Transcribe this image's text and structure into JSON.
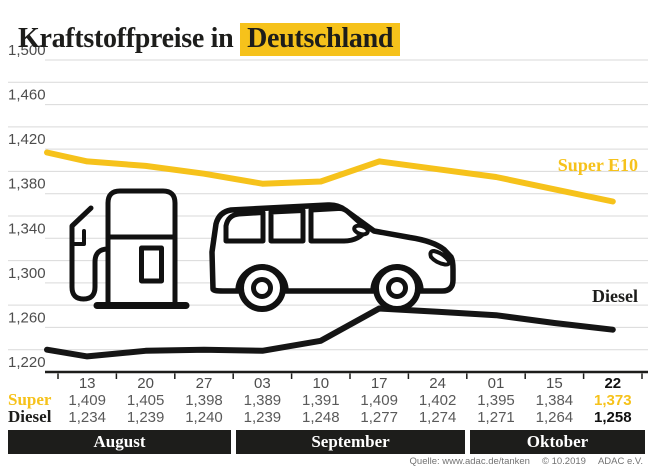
{
  "title": {
    "prefix": "Kraftstoffpreise in ",
    "highlight": "Deutschland"
  },
  "colors": {
    "accent_yellow": "#F6C21B",
    "line_black": "#151515",
    "band_bg": "#1D1D1B",
    "grid": "#D9D9D9",
    "axis_text": "#4D4D4D",
    "value_text": "#5A5A5A"
  },
  "footer": {
    "source": "Quelle: www.adac.de/tanken",
    "date": "© 10.2019",
    "org": "ADAC e.V."
  },
  "chart_data": {
    "type": "line",
    "title": "Kraftstoffpreise in Deutschland",
    "grid": "horizontal",
    "y_min": 1.22,
    "y_max": 1.5,
    "grid_step": 0.02,
    "y_tick_labels": [
      "1,500",
      "1,460",
      "1,420",
      "1,380",
      "1,340",
      "1,300",
      "1,260",
      "1,220"
    ],
    "x_tick_labels": [
      "13",
      "20",
      "27",
      "03",
      "10",
      "17",
      "24",
      "01",
      "15",
      "22"
    ],
    "x_month_groups": [
      {
        "label": "August",
        "dates": [
          "13",
          "20",
          "27"
        ]
      },
      {
        "label": "September",
        "dates": [
          "03",
          "10",
          "17",
          "24"
        ]
      },
      {
        "label": "Oktober",
        "dates": [
          "01",
          "15",
          "22"
        ]
      }
    ],
    "legend_position": "inline-right",
    "series": [
      {
        "name": "Super E10",
        "row_label": "Super",
        "color": "#F6C21B",
        "values": [
          1.409,
          1.405,
          1.398,
          1.389,
          1.391,
          1.409,
          1.402,
          1.395,
          1.384,
          1.373
        ],
        "value_labels": [
          "1,409",
          "1,405",
          "1,398",
          "1,389",
          "1,391",
          "1,409",
          "1,402",
          "1,395",
          "1,384",
          "1,373"
        ],
        "lead_in_estimate": 1.417
      },
      {
        "name": "Diesel",
        "row_label": "Diesel",
        "color": "#151515",
        "values": [
          1.234,
          1.239,
          1.24,
          1.239,
          1.248,
          1.277,
          1.274,
          1.271,
          1.264,
          1.258
        ],
        "value_labels": [
          "1,234",
          "1,239",
          "1,240",
          "1,239",
          "1,248",
          "1,277",
          "1,274",
          "1,271",
          "1,264",
          "1,258"
        ],
        "lead_in_estimate": 1.24
      }
    ]
  }
}
